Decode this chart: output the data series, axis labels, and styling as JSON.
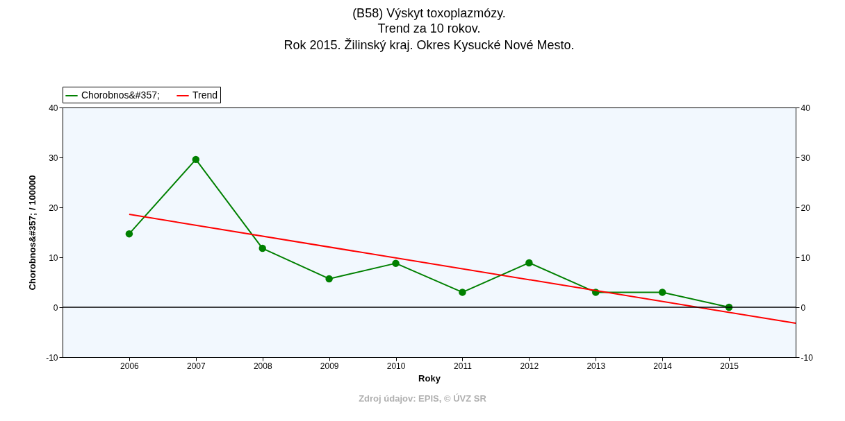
{
  "chart_data": {
    "type": "line",
    "title": "(B58) Výskyt toxoplazmózy.",
    "subtitle": "Trend za 10 rokov.\nRok 2015. Žilinský kraj. Okres Kysucké Nové Mesto.",
    "xlabel": "Roky",
    "ylabel": "Chorobnos&#357; / 100000",
    "annotations": [
      "Zdroj údajov: EPIS, © ÚVZ SR"
    ],
    "x": [
      2006,
      2007,
      2008,
      2009,
      2010,
      2011,
      2012,
      2013,
      2014,
      2015
    ],
    "series": [
      {
        "name": "Chorobnos&#357;",
        "color": "#008000",
        "values": [
          14.7,
          29.6,
          11.8,
          5.7,
          8.8,
          3.0,
          8.9,
          3.0,
          3.0,
          0
        ]
      },
      {
        "name": "Trend",
        "color": "#ff0000",
        "type": "line",
        "marker": "none",
        "x": [
          2006,
          2016
        ],
        "values": [
          18.6,
          -3.2
        ]
      }
    ],
    "xlim": [
      2005,
      2016
    ],
    "xticks": [
      2006,
      2007,
      2008,
      2009,
      2010,
      2011,
      2012,
      2013,
      2014,
      2015
    ],
    "ylim": [
      -10,
      40
    ],
    "yticks": [
      -10,
      0,
      10,
      20,
      30,
      40
    ],
    "y2lim": [
      -10,
      40
    ],
    "y2ticks": [
      -10,
      0,
      10,
      20,
      30,
      40
    ],
    "ref_lines": [
      {
        "axis": "y",
        "value": 0,
        "color": "#000000"
      }
    ],
    "legend": "top left",
    "marker": "circle",
    "line_style": "solid"
  }
}
